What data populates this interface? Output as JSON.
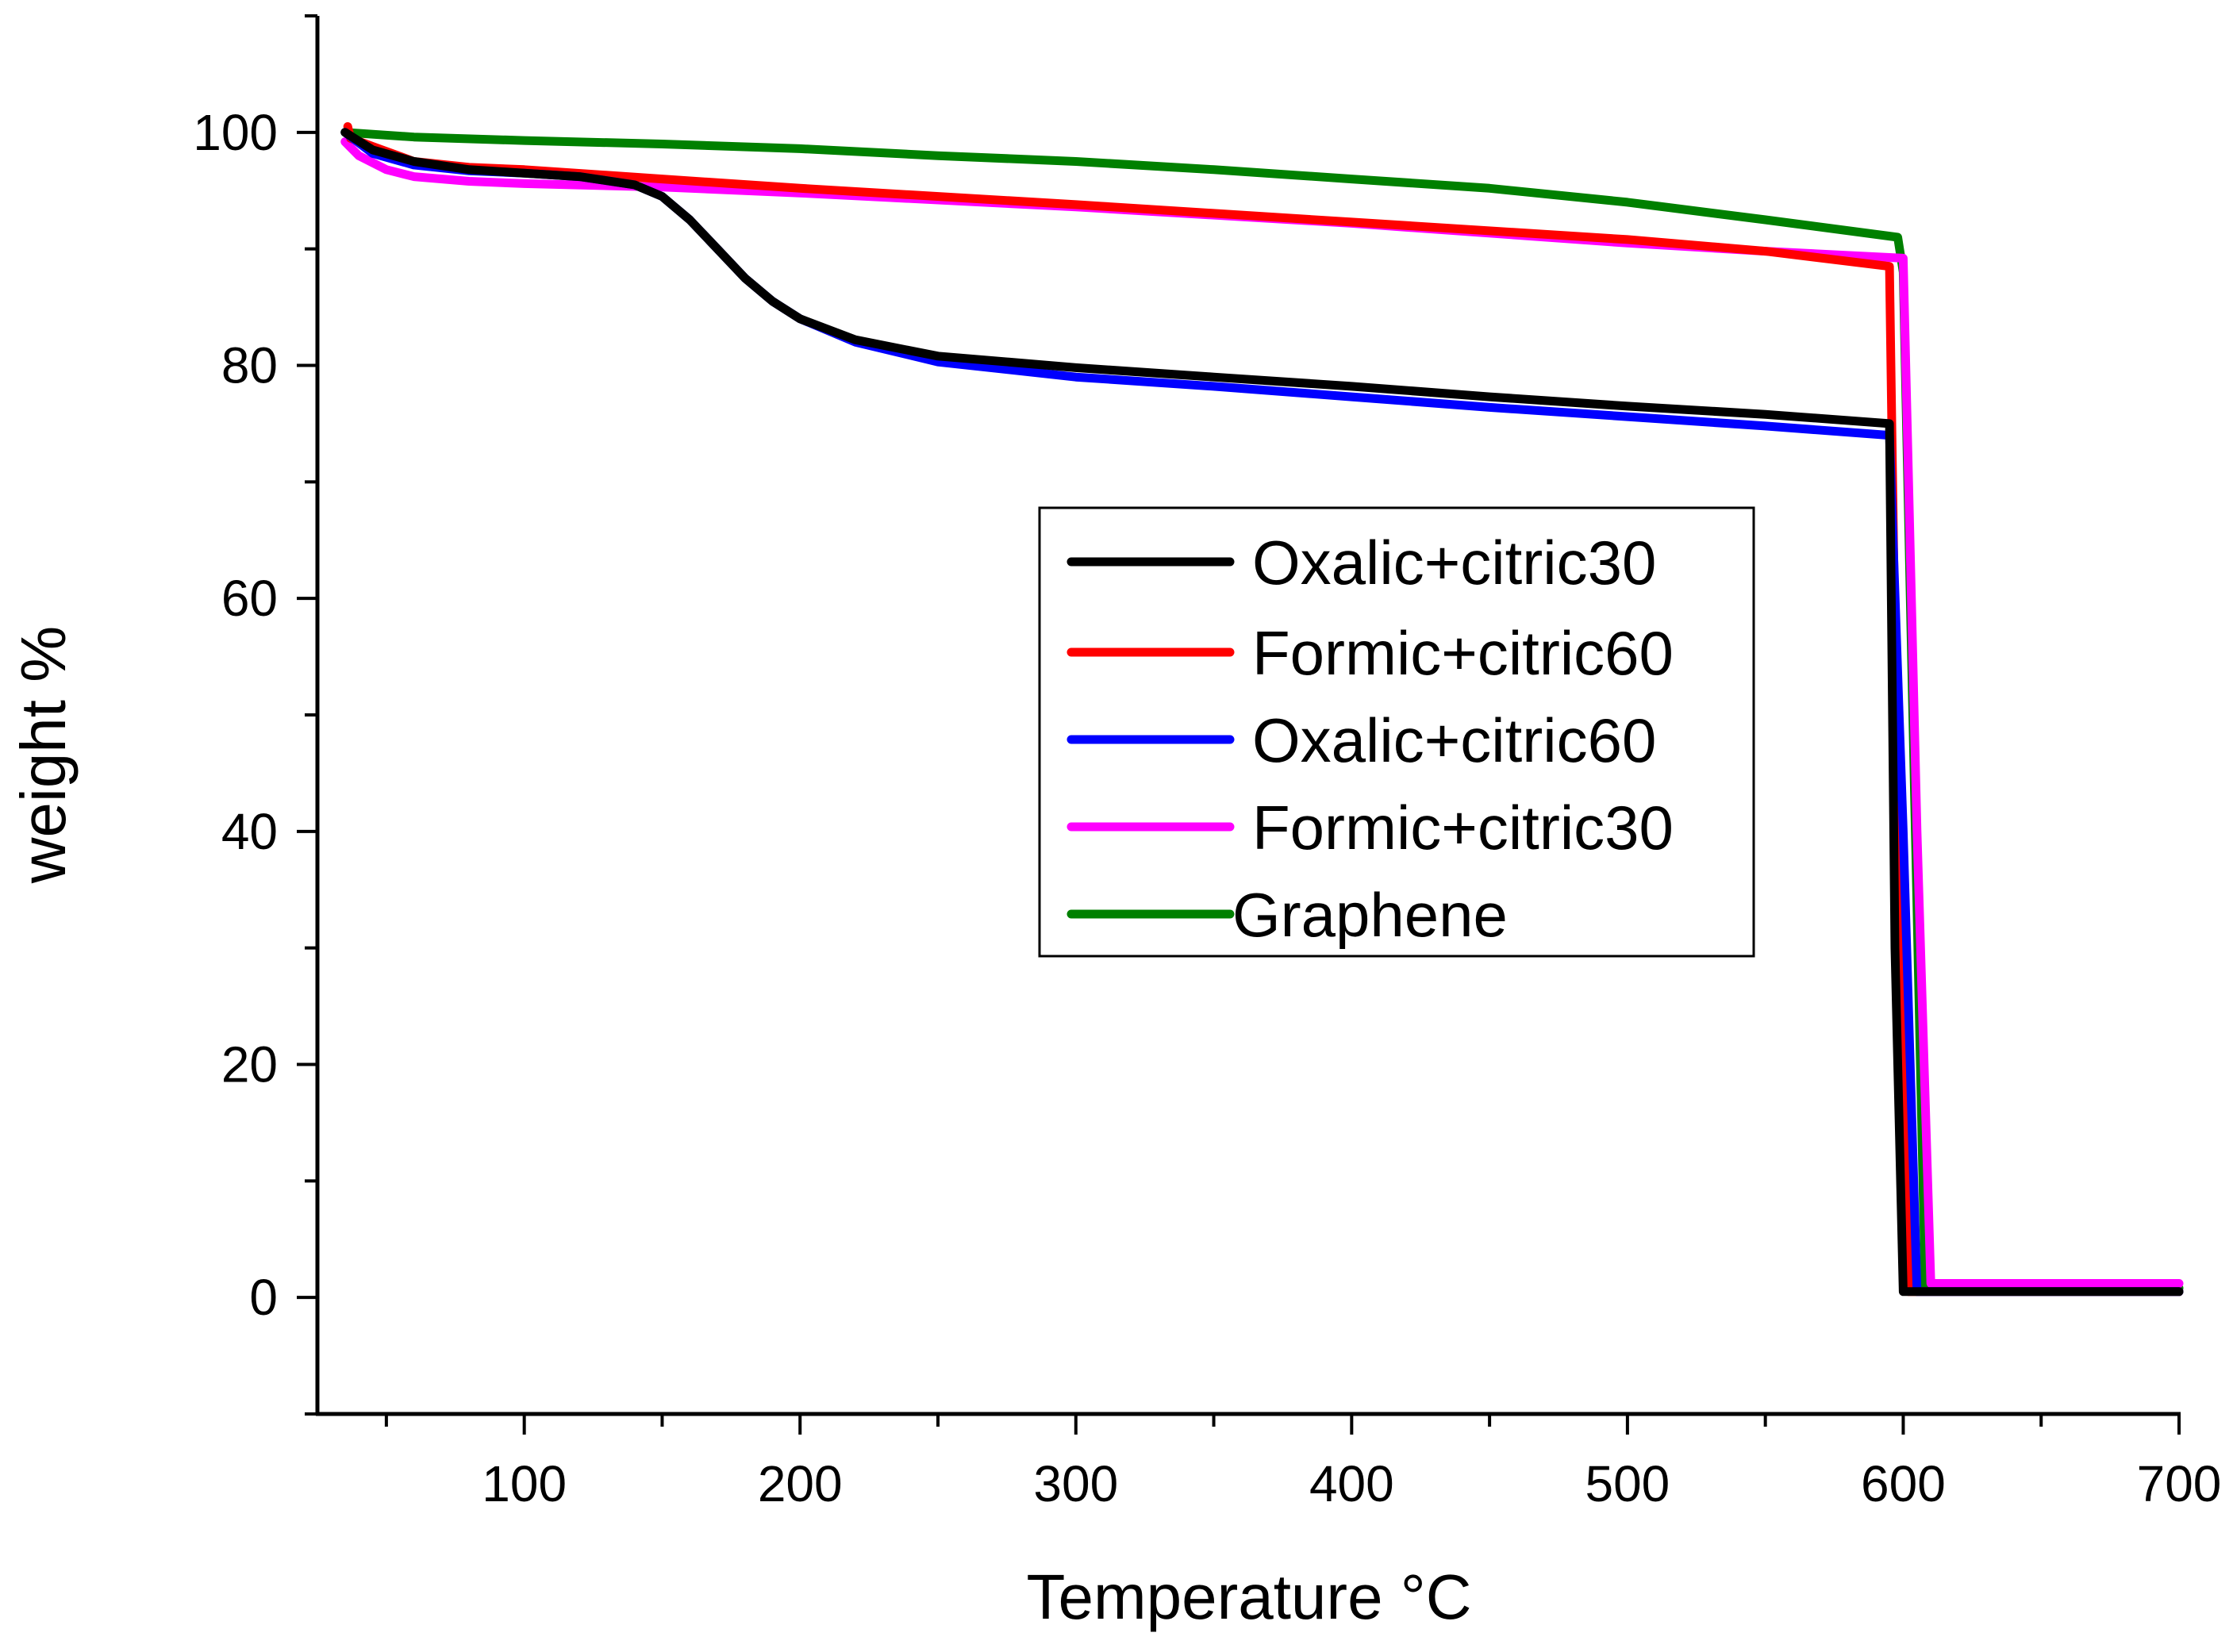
{
  "chart_data": {
    "type": "line",
    "title": "",
    "xlabel": "Temperature °C",
    "ylabel": "weight %",
    "xlim": [
      25,
      700
    ],
    "ylim": [
      -10,
      110
    ],
    "xticks": [
      100,
      200,
      300,
      400,
      500,
      600,
      700
    ],
    "yticks": [
      0,
      20,
      40,
      60,
      80,
      100
    ],
    "grid": false,
    "legend_position": "center-right",
    "series": [
      {
        "name": "Oxalic+citric30",
        "color": "#000000",
        "x": [
          35,
          45,
          60,
          80,
          100,
          120,
          140,
          150,
          160,
          170,
          180,
          190,
          200,
          220,
          250,
          300,
          350,
          400,
          450,
          500,
          550,
          595,
          597,
          600,
          700
        ],
        "y": [
          100,
          98.5,
          97.5,
          96.8,
          96.5,
          96.2,
          95.5,
          94.5,
          92.5,
          90,
          87.5,
          85.5,
          84,
          82.2,
          80.8,
          79.8,
          79,
          78.2,
          77.3,
          76.5,
          75.8,
          75,
          30,
          0.5,
          0.5
        ]
      },
      {
        "name": "Formic+citric60",
        "color": "#ff0000",
        "x": [
          36,
          37,
          45,
          60,
          80,
          100,
          150,
          200,
          300,
          400,
          500,
          550,
          595,
          598,
          602,
          700
        ],
        "y": [
          100.5,
          99.5,
          98.8,
          97.5,
          97,
          96.8,
          96,
          95.2,
          93.8,
          92.3,
          90.8,
          89.8,
          88.5,
          40,
          0.5,
          0.5
        ]
      },
      {
        "name": "Oxalic+citric60",
        "color": "#0000ff",
        "x": [
          35,
          45,
          60,
          80,
          100,
          120,
          140,
          150,
          160,
          170,
          180,
          190,
          200,
          220,
          250,
          300,
          350,
          400,
          450,
          500,
          550,
          595,
          600,
          605,
          700
        ],
        "y": [
          100,
          98.2,
          97.2,
          96.7,
          96.5,
          96.2,
          95.5,
          94.5,
          92.5,
          90,
          87.5,
          85.5,
          84,
          82,
          80.3,
          79,
          78.2,
          77.3,
          76.4,
          75.6,
          74.8,
          74,
          40,
          0.5,
          0.5
        ]
      },
      {
        "name": "Formic+citric30",
        "color": "#ff00ff",
        "x": [
          35,
          40,
          50,
          60,
          80,
          100,
          150,
          200,
          300,
          400,
          500,
          550,
          600,
          605,
          610,
          700
        ],
        "y": [
          99.2,
          98,
          96.8,
          96.2,
          95.8,
          95.6,
          95.3,
          94.8,
          93.6,
          92.2,
          90.5,
          89.8,
          89.2,
          40,
          1.2,
          1.2
        ]
      },
      {
        "name": "Graphene",
        "color": "#008000",
        "x": [
          35,
          60,
          100,
          150,
          200,
          250,
          300,
          350,
          400,
          450,
          500,
          550,
          598,
          600,
          608,
          700
        ],
        "y": [
          100,
          99.6,
          99.3,
          99,
          98.6,
          98,
          97.5,
          96.8,
          96,
          95.2,
          94,
          92.5,
          91,
          88,
          0.8,
          0.8
        ]
      }
    ]
  }
}
